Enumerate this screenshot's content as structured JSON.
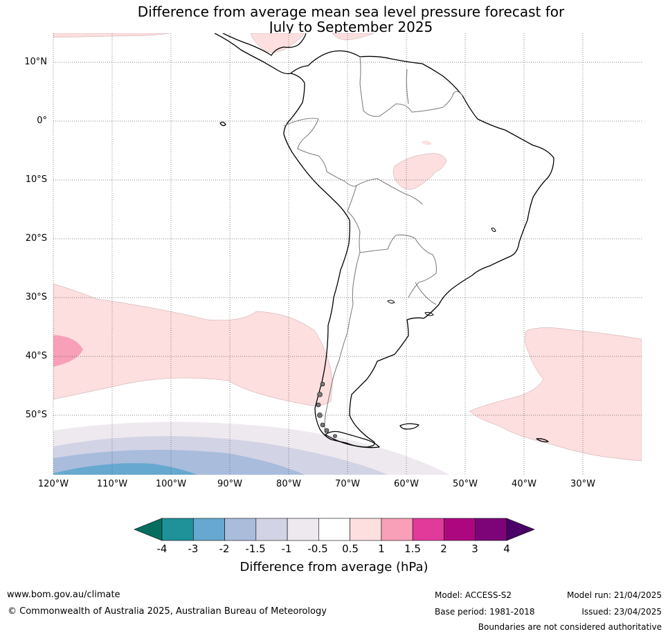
{
  "title": {
    "line1": "Difference from average mean sea level pressure forecast for",
    "line2": "July to September 2025"
  },
  "map": {
    "lat_labels": [
      "10°N",
      "0°",
      "10°S",
      "20°S",
      "30°S",
      "40°S",
      "50°S"
    ],
    "lon_labels": [
      "120°W",
      "110°W",
      "100°W",
      "90°W",
      "80°W",
      "70°W",
      "60°W",
      "50°W",
      "40°W",
      "30°W"
    ]
  },
  "legend": {
    "title": "Difference from average (hPa)",
    "ticks": [
      "-4",
      "-3",
      "-2",
      "-1.5",
      "-1",
      "-0.5",
      "0.5",
      "1",
      "1.5",
      "2",
      "3",
      "4"
    ],
    "colors": [
      "#1e9199",
      "#66a8d0",
      "#a9bcdc",
      "#d3d3e6",
      "#eee9ef",
      "#ffffff",
      "#fddfdf",
      "#f7a0b8",
      "#e13a9a",
      "#ad0780",
      "#7c0478"
    ],
    "low_extend_color": "#076d5e",
    "high_extend_color": "#4a0068"
  },
  "footer": {
    "website": "www.bom.gov.au/climate",
    "copyright": "© Commonwealth of Australia 2025, Australian Bureau of Meteorology",
    "model": "Model: ACCESS-S2",
    "base_period": "Base period: 1981-2018",
    "model_run": "Model run: 21/04/2025",
    "issued": "Issued: 23/04/2025",
    "disclaimer": "Boundaries are not considered authoritative"
  }
}
